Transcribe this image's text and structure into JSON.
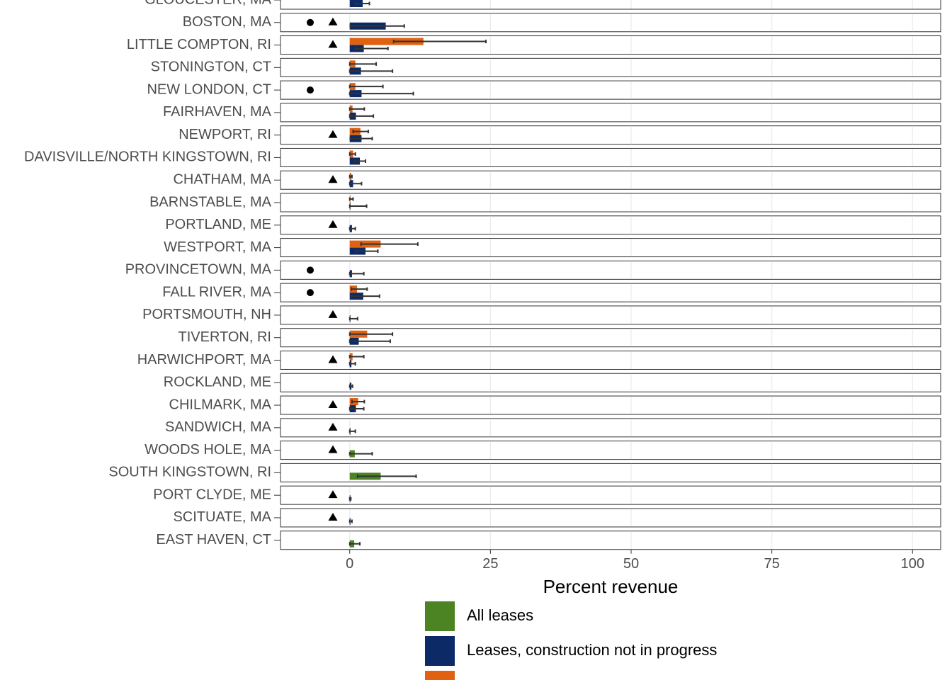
{
  "chart_data": {
    "type": "bar",
    "x_axis_label": "Percent revenue",
    "categories": [
      "GLOUCESTER, MA",
      "BOSTON, MA",
      "LITTLE COMPTON, RI",
      "STONINGTON, CT",
      "NEW LONDON, CT",
      "FAIRHAVEN, MA",
      "NEWPORT, RI",
      "DAVISVILLE/NORTH KINGSTOWN, RI",
      "CHATHAM, MA",
      "BARNSTABLE, MA",
      "PORTLAND, ME",
      "WESTPORT, MA",
      "PROVINCETOWN, MA",
      "FALL RIVER, MA",
      "PORTSMOUTH, NH",
      "TIVERTON, RI",
      "HARWICHPORT, MA",
      "ROCKLAND, ME",
      "CHILMARK, MA",
      "SANDWICH, MA",
      "WOODS HOLE, MA",
      "SOUTH KINGSTOWN, RI",
      "PORT CLYDE, ME",
      "SCITUATE, MA",
      "EAST HAVEN, CT"
    ],
    "symbols": [
      [],
      [
        "circle",
        "triangle"
      ],
      [
        "triangle"
      ],
      [],
      [
        "circle"
      ],
      [],
      [
        "triangle"
      ],
      [],
      [
        "triangle"
      ],
      [],
      [
        "triangle"
      ],
      [],
      [
        "circle"
      ],
      [
        "circle"
      ],
      [
        "triangle"
      ],
      [],
      [
        "triangle"
      ],
      [],
      [
        "triangle"
      ],
      [
        "triangle"
      ],
      [
        "triangle"
      ],
      [],
      [
        "triangle"
      ],
      [
        "triangle"
      ],
      []
    ],
    "series": [
      {
        "name": "All leases",
        "color": "#4d8423",
        "values": [
          null,
          null,
          null,
          null,
          null,
          null,
          null,
          null,
          null,
          null,
          null,
          null,
          null,
          null,
          null,
          null,
          null,
          null,
          null,
          null,
          0.9,
          5.5,
          null,
          null,
          0.8
        ],
        "error_low": [
          null,
          null,
          null,
          null,
          null,
          null,
          null,
          null,
          null,
          null,
          null,
          null,
          null,
          null,
          null,
          null,
          null,
          null,
          null,
          null,
          0,
          1.4,
          null,
          null,
          0
        ],
        "error_high": [
          null,
          null,
          null,
          null,
          null,
          null,
          null,
          null,
          null,
          null,
          null,
          null,
          null,
          null,
          null,
          null,
          null,
          null,
          null,
          null,
          4.0,
          11.8,
          null,
          null,
          1.8
        ]
      },
      {
        "name": "Leases, construction not in progress",
        "color": "#0b2a66",
        "values": [
          2.3,
          6.4,
          2.5,
          2.0,
          2.1,
          1.1,
          2.1,
          1.8,
          0.6,
          0.1,
          0.4,
          2.8,
          0.4,
          2.4,
          0.1,
          1.6,
          0.3,
          0.3,
          1.1,
          0.1,
          null,
          null,
          0.1,
          0.1,
          null
        ],
        "error_low": [
          1.0,
          0.1,
          1.0,
          0,
          0,
          0,
          0.1,
          0.8,
          0,
          0,
          0,
          1.1,
          0,
          0.3,
          0,
          0,
          0,
          0,
          0,
          0,
          null,
          null,
          0,
          0,
          null
        ],
        "error_high": [
          3.5,
          9.7,
          6.8,
          7.6,
          11.3,
          4.2,
          4.0,
          2.8,
          2.1,
          3.0,
          1.0,
          5.0,
          2.5,
          5.3,
          1.4,
          7.2,
          1.0,
          0.5,
          2.5,
          1.0,
          null,
          null,
          0.2,
          0.4,
          null
        ]
      },
      {
        "color": "#e06112",
        "values": [
          null,
          null,
          13.1,
          1.0,
          1.0,
          0.5,
          1.9,
          0.6,
          0.3,
          0.1,
          null,
          5.5,
          null,
          1.3,
          null,
          3.1,
          0.5,
          null,
          1.5,
          null,
          null,
          null,
          null,
          null,
          null
        ],
        "error_low": [
          null,
          null,
          7.8,
          0,
          0,
          0,
          0.6,
          0,
          0,
          0,
          null,
          2.0,
          null,
          0.3,
          null,
          0,
          0,
          null,
          0.4,
          null,
          null,
          null,
          null,
          null,
          null
        ],
        "error_high": [
          null,
          null,
          24.2,
          4.7,
          5.9,
          2.6,
          3.3,
          1.0,
          0.4,
          0.6,
          null,
          12.1,
          null,
          3.1,
          null,
          7.6,
          2.5,
          null,
          2.6,
          null,
          null,
          null,
          null,
          null,
          null
        ]
      }
    ],
    "xlim": [
      -12.3,
      105
    ],
    "xticks": [
      0,
      25,
      50,
      75,
      100
    ],
    "grid": true
  }
}
